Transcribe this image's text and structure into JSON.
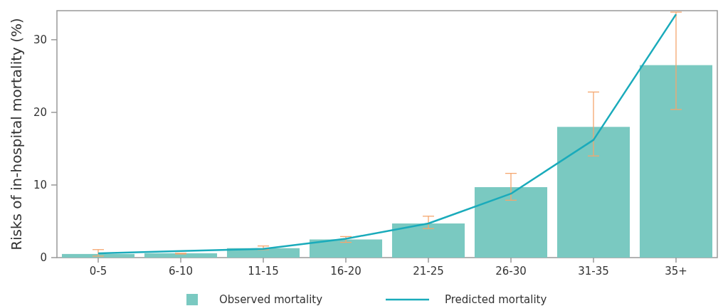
{
  "chart_data": {
    "type": "bar",
    "ylabel": "Risks of in-hospital mortality (%)",
    "categories": [
      "0-5",
      "6-10",
      "11-15",
      "16-20",
      "21-25",
      "26-30",
      "31-35",
      "35+"
    ],
    "series": [
      {
        "name": "Observed mortality",
        "color": "#7ac9c1",
        "values": [
          0.5,
          0.6,
          1.3,
          2.5,
          4.7,
          9.7,
          18.0,
          26.5
        ],
        "errors": [
          [
            0.2,
            1.1
          ],
          [
            0.5,
            0.6
          ],
          [
            1.1,
            1.6
          ],
          [
            2.1,
            2.9
          ],
          [
            4.0,
            5.7
          ],
          [
            7.9,
            11.6
          ],
          [
            14.0,
            22.8
          ],
          [
            20.4,
            33.8
          ]
        ]
      },
      {
        "name": "Predicted mortality",
        "type": "line",
        "color": "#1aabbb",
        "values": [
          0.6,
          0.9,
          1.2,
          2.6,
          4.7,
          8.8,
          16.2,
          33.5
        ]
      }
    ],
    "ylim": [
      0,
      34
    ],
    "yticks": [
      0,
      10,
      20,
      30
    ],
    "legend": "bottom",
    "grid": false
  }
}
